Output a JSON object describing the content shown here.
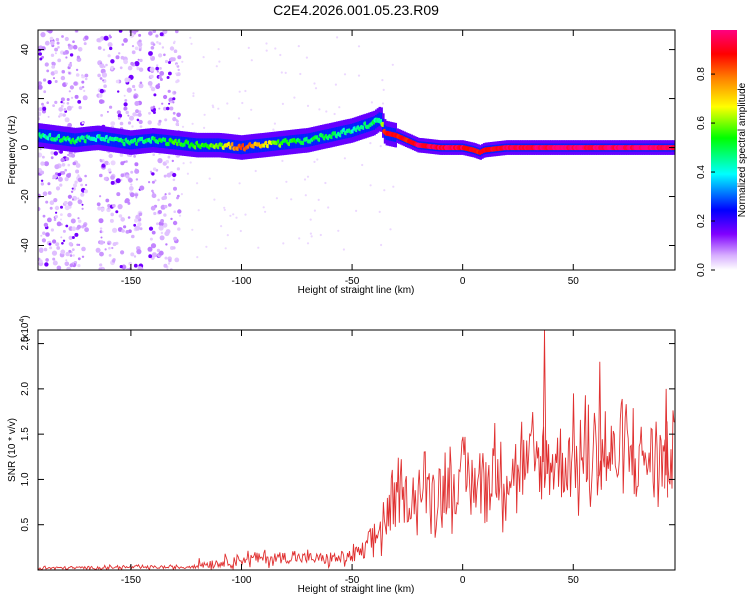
{
  "figure": {
    "title": "C2E4.2026.001.05.23.R09"
  },
  "chart_data": [
    {
      "type": "heatmap",
      "xlabel": "Height of straight line (km)",
      "ylabel": "Frequency (Hz)",
      "xlim": [
        -192,
        96
      ],
      "ylim": [
        -50,
        48
      ],
      "x_ticks": [
        "-150",
        "-100",
        "-50",
        "0",
        "50"
      ],
      "y_ticks": [
        "40",
        "20",
        "0",
        "-20",
        "-40"
      ],
      "colorbar": {
        "label": "Normalized spectral amplitude",
        "ticks": [
          "0.0",
          "0.2",
          "0.4",
          "0.6",
          "0.8"
        ],
        "range": [
          0,
          0.98
        ],
        "colormap": [
          "#f0e0ff",
          "#8000ff",
          "#0000ff",
          "#00ffff",
          "#00ff00",
          "#ffff00",
          "#ff8000",
          "#ff0000",
          "#ff00a0"
        ]
      },
      "ridge": {
        "x": [
          -192,
          -175,
          -165,
          -150,
          -140,
          -130,
          -120,
          -110,
          -100,
          -90,
          -80,
          -70,
          -60,
          -50,
          -40,
          -37,
          -35,
          -30,
          -25,
          -20,
          -10,
          0,
          5,
          8,
          10,
          20,
          40,
          60,
          80,
          96
        ],
        "frequency": [
          5,
          3,
          4,
          2,
          3,
          2,
          1,
          1,
          0,
          1,
          2,
          3,
          5,
          7,
          10,
          12,
          6,
          5,
          3,
          1,
          0,
          0,
          -1,
          -2,
          -1,
          0,
          0,
          0,
          0,
          0
        ],
        "amplitude": [
          0.45,
          0.5,
          0.45,
          0.5,
          0.5,
          0.55,
          0.55,
          0.6,
          0.85,
          0.7,
          0.55,
          0.5,
          0.5,
          0.45,
          0.5,
          0.4,
          0.9,
          0.9,
          0.9,
          0.95,
          0.95,
          0.95,
          0.9,
          0.9,
          0.9,
          0.95,
          0.98,
          0.98,
          0.98,
          0.98
        ]
      },
      "scatter_regions": [
        [
          -192,
          -170
        ],
        [
          -165,
          -145
        ],
        [
          -142,
          -128
        ]
      ]
    },
    {
      "type": "line",
      "xlabel": "Height of straight line (km)",
      "ylabel": "SNR (10 * v/v)",
      "y_multiplier": "(x10^4)",
      "xlim": [
        -192,
        96
      ],
      "ylim": [
        0,
        2.65
      ],
      "x_ticks": [
        "-150",
        "-100",
        "-50",
        "0",
        "50"
      ],
      "y_ticks": [
        "0.5",
        "1.0",
        "1.5",
        "2.0",
        "2.5"
      ],
      "color": "#e03030",
      "trend": {
        "x": [
          -192,
          -150,
          -125,
          -120,
          -110,
          -100,
          -80,
          -60,
          -50,
          -45,
          -40,
          -35,
          -30,
          -20,
          -10,
          0,
          10,
          20,
          30,
          40,
          50,
          60,
          70,
          80,
          90,
          96
        ],
        "mean": [
          0.02,
          0.03,
          0.03,
          0.06,
          0.08,
          0.12,
          0.14,
          0.12,
          0.15,
          0.2,
          0.35,
          0.55,
          0.75,
          0.85,
          0.9,
          0.95,
          1.0,
          1.1,
          1.15,
          1.2,
          1.2,
          1.25,
          1.25,
          1.25,
          1.25,
          1.25
        ],
        "amp": [
          0.02,
          0.02,
          0.02,
          0.05,
          0.06,
          0.08,
          0.08,
          0.08,
          0.1,
          0.15,
          0.25,
          0.3,
          0.35,
          0.35,
          0.4,
          0.4,
          0.45,
          0.5,
          0.5,
          0.55,
          0.55,
          0.55,
          0.55,
          0.5,
          0.5,
          0.5
        ]
      },
      "peaks": [
        {
          "x": 37,
          "y": 2.65
        },
        {
          "x": 62,
          "y": 2.3
        },
        {
          "x": 92,
          "y": 2.0
        }
      ]
    }
  ]
}
